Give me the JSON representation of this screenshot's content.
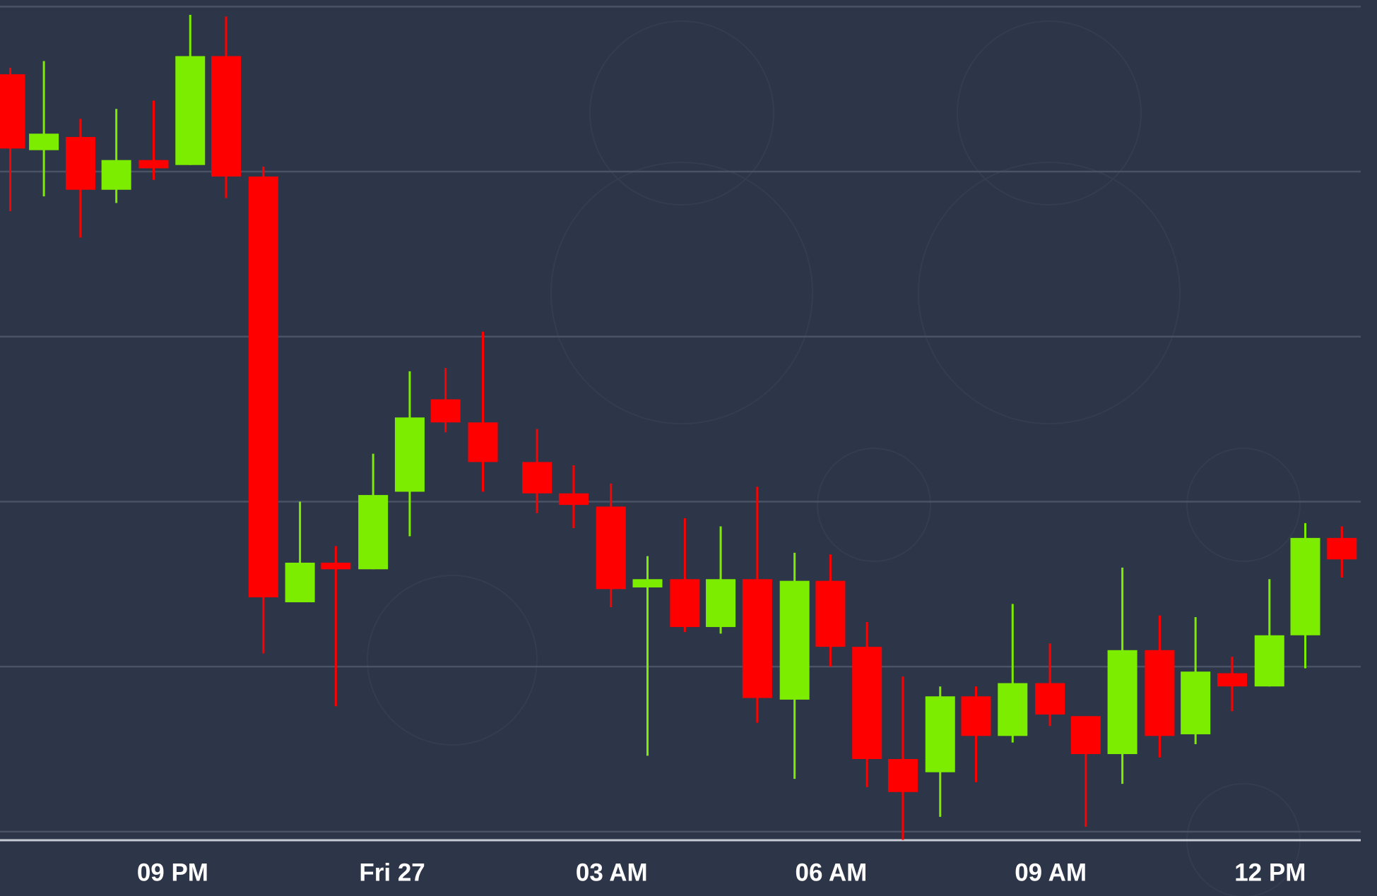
{
  "chart_data": {
    "type": "candlestick",
    "up_color": "#7ded00",
    "down_color": "#ff0000",
    "grid": true,
    "xlim": [
      18.64,
      37.46
    ],
    "xticks": [
      {
        "value": 21,
        "label": "09 PM"
      },
      {
        "value": 24,
        "label": "Fri 27"
      },
      {
        "value": 27,
        "label": "03 AM"
      },
      {
        "value": 30,
        "label": "06 AM"
      },
      {
        "value": 33,
        "label": "09 AM"
      },
      {
        "value": 36,
        "label": "12 PM"
      }
    ],
    "ylim": [
      -0.39,
      5.04
    ],
    "yticks": [
      0,
      1,
      2,
      3,
      4,
      5
    ],
    "x": [
      18.78,
      19.24,
      19.74,
      20.23,
      20.74,
      21.24,
      21.73,
      22.24,
      22.74,
      23.23,
      23.74,
      24.24,
      24.73,
      25.24,
      25.98,
      26.48,
      26.99,
      27.49,
      28.0,
      28.49,
      28.99,
      29.5,
      29.99,
      30.49,
      30.98,
      31.49,
      31.98,
      32.48,
      32.99,
      33.48,
      33.98,
      34.49,
      34.98,
      35.48,
      35.99,
      36.48,
      36.98
    ],
    "open": [
      4.59,
      4.13,
      4.21,
      3.89,
      4.07,
      4.04,
      4.7,
      3.97,
      1.39,
      1.63,
      1.59,
      2.06,
      2.62,
      2.48,
      2.24,
      2.05,
      1.97,
      1.48,
      1.53,
      1.24,
      1.53,
      0.8,
      1.52,
      1.12,
      0.44,
      0.36,
      0.82,
      0.58,
      0.9,
      0.7,
      0.47,
      1.1,
      0.59,
      0.96,
      0.88,
      1.19,
      1.78
    ],
    "high": [
      4.63,
      4.67,
      4.32,
      4.38,
      4.43,
      4.95,
      4.94,
      4.03,
      2.0,
      1.73,
      2.29,
      2.79,
      2.81,
      3.03,
      2.44,
      2.22,
      2.11,
      1.67,
      1.9,
      1.85,
      2.09,
      1.69,
      1.68,
      1.27,
      0.94,
      0.88,
      0.88,
      1.38,
      1.14,
      0.7,
      1.6,
      1.31,
      1.3,
      1.06,
      1.53,
      1.87,
      1.85
    ],
    "low": [
      3.76,
      3.85,
      3.6,
      3.81,
      3.95,
      4.04,
      3.84,
      1.08,
      1.39,
      0.76,
      1.59,
      1.79,
      2.42,
      2.06,
      1.93,
      1.84,
      1.36,
      0.46,
      1.21,
      1.2,
      0.66,
      0.32,
      1.0,
      0.27,
      -0.05,
      0.09,
      0.3,
      0.54,
      0.64,
      0.03,
      0.29,
      0.45,
      0.53,
      0.73,
      0.88,
      0.99,
      1.54
    ],
    "close": [
      4.14,
      4.23,
      3.89,
      4.07,
      4.02,
      4.7,
      3.97,
      1.42,
      1.63,
      1.59,
      2.04,
      2.51,
      2.48,
      2.24,
      2.05,
      1.98,
      1.47,
      1.53,
      1.24,
      1.53,
      0.81,
      1.52,
      1.12,
      0.44,
      0.24,
      0.82,
      0.58,
      0.9,
      0.71,
      0.47,
      1.1,
      0.58,
      0.97,
      0.88,
      1.19,
      1.78,
      1.65
    ]
  }
}
